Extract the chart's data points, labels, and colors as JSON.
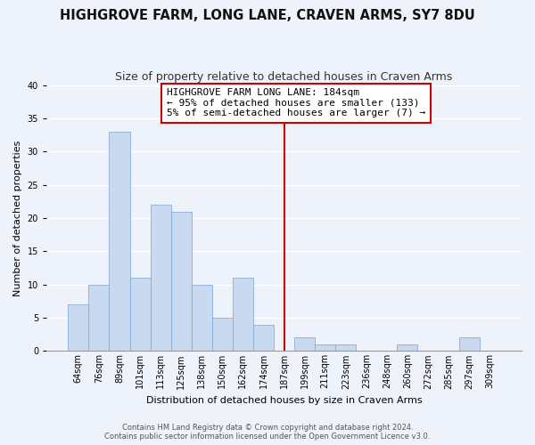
{
  "title": "HIGHGROVE FARM, LONG LANE, CRAVEN ARMS, SY7 8DU",
  "subtitle": "Size of property relative to detached houses in Craven Arms",
  "xlabel": "Distribution of detached houses by size in Craven Arms",
  "ylabel": "Number of detached properties",
  "footer_line1": "Contains HM Land Registry data © Crown copyright and database right 2024.",
  "footer_line2": "Contains public sector information licensed under the Open Government Licence v3.0.",
  "bin_labels": [
    "64sqm",
    "76sqm",
    "89sqm",
    "101sqm",
    "113sqm",
    "125sqm",
    "138sqm",
    "150sqm",
    "162sqm",
    "174sqm",
    "187sqm",
    "199sqm",
    "211sqm",
    "223sqm",
    "236sqm",
    "248sqm",
    "260sqm",
    "272sqm",
    "285sqm",
    "297sqm",
    "309sqm"
  ],
  "bar_values": [
    7,
    10,
    33,
    11,
    22,
    21,
    10,
    5,
    11,
    4,
    0,
    2,
    1,
    1,
    0,
    0,
    1,
    0,
    0,
    2,
    0
  ],
  "bar_color": "#c9d9f0",
  "bar_edge_color": "#8aadd4",
  "vline_index": 10,
  "vline_color": "#cc0000",
  "annotation_line1": "HIGHGROVE FARM LONG LANE: 184sqm",
  "annotation_line2": "← 95% of detached houses are smaller (133)",
  "annotation_line3": "5% of semi-detached houses are larger (7) →",
  "annotation_box_color": "#cc0000",
  "ylim": [
    0,
    40
  ],
  "yticks": [
    0,
    5,
    10,
    15,
    20,
    25,
    30,
    35,
    40
  ],
  "background_color": "#eef2fa",
  "grid_color": "#ffffff",
  "title_fontsize": 10.5,
  "subtitle_fontsize": 9,
  "axis_label_fontsize": 8,
  "tick_fontsize": 7,
  "annotation_fontsize": 8,
  "footer_fontsize": 6
}
